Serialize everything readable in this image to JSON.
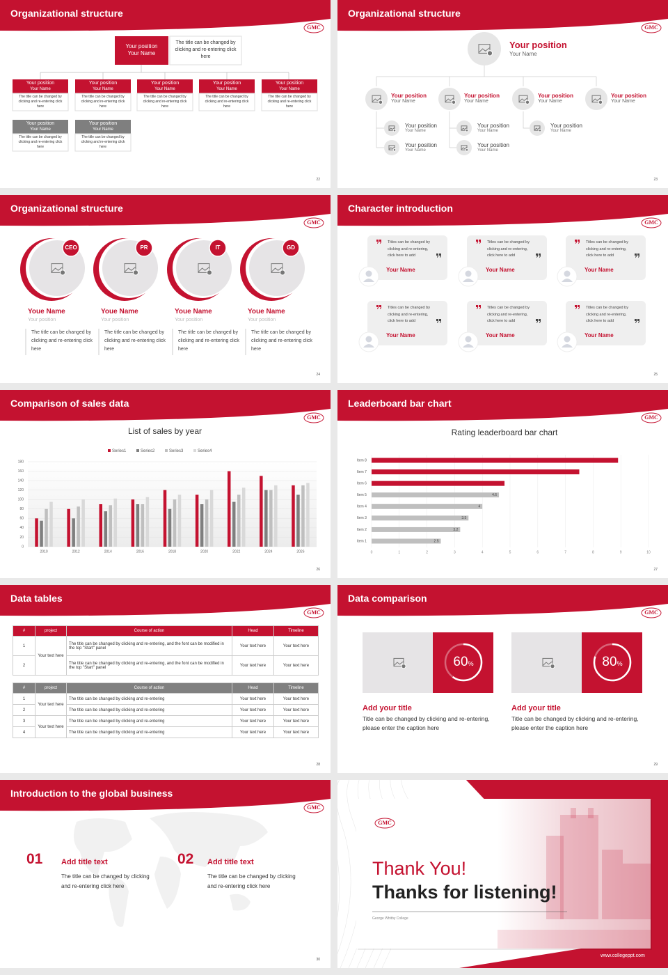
{
  "logo": "GMC",
  "slides": [
    {
      "title": "Organizational structure",
      "page": "22",
      "top": {
        "position": "Your position",
        "name": "Your Name",
        "desc": "The title can be changed by clicking and re-entering click here"
      },
      "row1": [
        {
          "position": "Your position",
          "name": "Your Name",
          "desc": "The title can be changed by clicking and re-entering click here"
        },
        {
          "position": "Your position",
          "name": "Your Name",
          "desc": "The title can be changed by clicking and re-entering click here"
        },
        {
          "position": "Your position",
          "name": "Your Name",
          "desc": "The title can be changed by clicking and re-entering click here"
        },
        {
          "position": "Your position",
          "name": "Your Name",
          "desc": "The title can be changed by clicking and re-entering click here"
        },
        {
          "position": "Your position",
          "name": "Your Name",
          "desc": "The title can be changed by clicking and re-entering click here"
        }
      ],
      "row2": [
        {
          "position": "Your position",
          "name": "Your Name",
          "desc": "The title can be changed by clicking and re-entering click here"
        },
        {
          "position": "Your position",
          "name": "Your Name",
          "desc": "The title can be changed by clicking and re-entering click here"
        }
      ]
    },
    {
      "title": "Organizational structure",
      "page": "23",
      "top": {
        "position": "Your position",
        "name": "Your Name"
      },
      "level2": [
        {
          "position": "Your position",
          "name": "Your Name"
        },
        {
          "position": "Your position",
          "name": "Your Name"
        },
        {
          "position": "Your position",
          "name": "Your Name"
        },
        {
          "position": "Your position",
          "name": "Your Name"
        }
      ],
      "subs": [
        {
          "position": "Your position",
          "name": "Your Name"
        },
        {
          "position": "Your position",
          "name": "Your Name"
        },
        {
          "position": "Your position",
          "name": "Your Name"
        },
        {
          "position": "Your position",
          "name": "Your Name"
        },
        {
          "position": "Your position",
          "name": "Your Name"
        }
      ]
    },
    {
      "title": "Organizational structure",
      "page": "24",
      "people": [
        {
          "badge": "CEO",
          "name": "Youe Name",
          "position": "Your position",
          "desc": "The title can be changed by clicking and re-entering click here"
        },
        {
          "badge": "PR",
          "name": "Youe Name",
          "position": "Your position",
          "desc": "The title can be changed by clicking and re-entering click here"
        },
        {
          "badge": "IT",
          "name": "Youe Name",
          "position": "Your position",
          "desc": "The title can be changed by clicking and re-entering click here"
        },
        {
          "badge": "GD",
          "name": "Youe Name",
          "position": "Your position",
          "desc": "The title can be changed by clicking and re-entering click here"
        }
      ]
    },
    {
      "title": "Character introduction",
      "page": "25",
      "cards": [
        {
          "quote": "Titles can be changed by clicking and re-entering, click here to add",
          "name": "Your Name"
        },
        {
          "quote": "Titles can be changed by clicking and re-entering, click here to add",
          "name": "Your Name"
        },
        {
          "quote": "Titles can be changed by clicking and re-entering, click here to add",
          "name": "Your Name"
        },
        {
          "quote": "Titles can be changed by clicking and re-entering, click here to add",
          "name": "Your Name"
        },
        {
          "quote": "Titles can be changed by clicking and re-entering, click here to add",
          "name": "Your Name"
        },
        {
          "quote": "Titles can be changed by clicking and re-entering, click here to add",
          "name": "Your Name"
        }
      ]
    },
    {
      "title": "Comparison of sales data",
      "page": "26"
    },
    {
      "title": "Leaderboard bar chart",
      "page": "27"
    },
    {
      "title": "Data tables",
      "page": "28",
      "table1": {
        "header": [
          "#",
          "project",
          "Course of action",
          "Head",
          "Timeline"
        ],
        "project": "Your text here",
        "rows": [
          [
            "1",
            "The title can be changed by clicking and re-entering, and the font can be modified in the top \"Start\" panel",
            "Your text here",
            "Your text here"
          ],
          [
            "2",
            "The title can be changed by clicking and re-entering, and the font can be modified in the top \"Start\" panel",
            "Your text here",
            "Your text here"
          ]
        ]
      },
      "table2": {
        "header": [
          "#",
          "project",
          "Course of action",
          "Head",
          "Timeline"
        ],
        "groups": [
          {
            "project": "Your text here",
            "rows": [
              [
                "1",
                "The title can be changed by clicking and re-entering",
                "Your text here",
                "Your text here"
              ],
              [
                "2",
                "The title can be changed by clicking and re-entering",
                "Your text here",
                "Your text here"
              ]
            ]
          },
          {
            "project": "Your text here",
            "rows": [
              [
                "3",
                "The title can be changed by clicking and re-entering",
                "Your text here",
                "Your text here"
              ],
              [
                "4",
                "The title can be changed by clicking and re-entering",
                "Your text here",
                "Your text here"
              ]
            ]
          }
        ]
      }
    },
    {
      "title": "Data comparison",
      "page": "29",
      "items": [
        {
          "value": 60,
          "unit": "%",
          "title": "Add your title",
          "desc": "Title can be changed by clicking and re-entering, please enter the caption here"
        },
        {
          "value": 80,
          "unit": "%",
          "title": "Add your title",
          "desc": "Title can be changed by clicking and re-entering, please enter the caption here"
        }
      ]
    },
    {
      "title": "Introduction to the global business",
      "page": "30",
      "items": [
        {
          "num": "01",
          "title": "Add title text",
          "desc": "The title can be changed by clicking and re-entering click here"
        },
        {
          "num": "02",
          "title": "Add title text",
          "desc": "The title can be changed by clicking and re-entering click here"
        }
      ]
    },
    {
      "thanks": "Thank You!",
      "subtitle": "Thanks for listening!",
      "college": "George Whitby College",
      "url": "www.collegeppt.com"
    }
  ],
  "chart_data": [
    {
      "type": "bar",
      "title": "List of sales by year",
      "categories": [
        "2010",
        "2012",
        "2014",
        "2016",
        "2018",
        "2020",
        "2022",
        "2024",
        "2026"
      ],
      "series": [
        {
          "name": "Series1",
          "color": "#c41230",
          "values": [
            60,
            80,
            90,
            100,
            120,
            110,
            160,
            150,
            130
          ]
        },
        {
          "name": "Series2",
          "color": "#7f7f7f",
          "values": [
            55,
            60,
            75,
            90,
            80,
            90,
            95,
            120,
            110
          ]
        },
        {
          "name": "Series3",
          "color": "#bfbfbf",
          "values": [
            80,
            85,
            88,
            90,
            100,
            100,
            110,
            120,
            130
          ]
        },
        {
          "name": "Series4",
          "color": "#d9d9d9",
          "values": [
            95,
            100,
            102,
            105,
            110,
            120,
            125,
            130,
            135
          ]
        }
      ],
      "ylim": [
        0,
        180
      ],
      "yticks": [
        0,
        20,
        40,
        60,
        80,
        100,
        120,
        140,
        160,
        180
      ],
      "grid": true,
      "legend": "top"
    },
    {
      "type": "barh",
      "title": "Rating leaderboard bar chart",
      "categories": [
        "Item 1",
        "Item 2",
        "Item 3",
        "Item 4",
        "Item 5",
        "Item 6",
        "Item 7",
        "Item 8"
      ],
      "values": [
        2.5,
        3.2,
        3.5,
        4,
        4.6,
        4.8,
        7.5,
        8.9
      ],
      "value_labels": [
        "2.5",
        "3.2",
        "3.5",
        "4",
        "4.6",
        null,
        null,
        null
      ],
      "colors": [
        "#bfbfbf",
        "#bfbfbf",
        "#bfbfbf",
        "#bfbfbf",
        "#bfbfbf",
        "#c41230",
        "#c41230",
        "#c41230"
      ],
      "xlim": [
        0,
        10
      ],
      "xticks": [
        0,
        1,
        2,
        3,
        4,
        5,
        6,
        7,
        8,
        9,
        10
      ],
      "grid": true
    }
  ]
}
